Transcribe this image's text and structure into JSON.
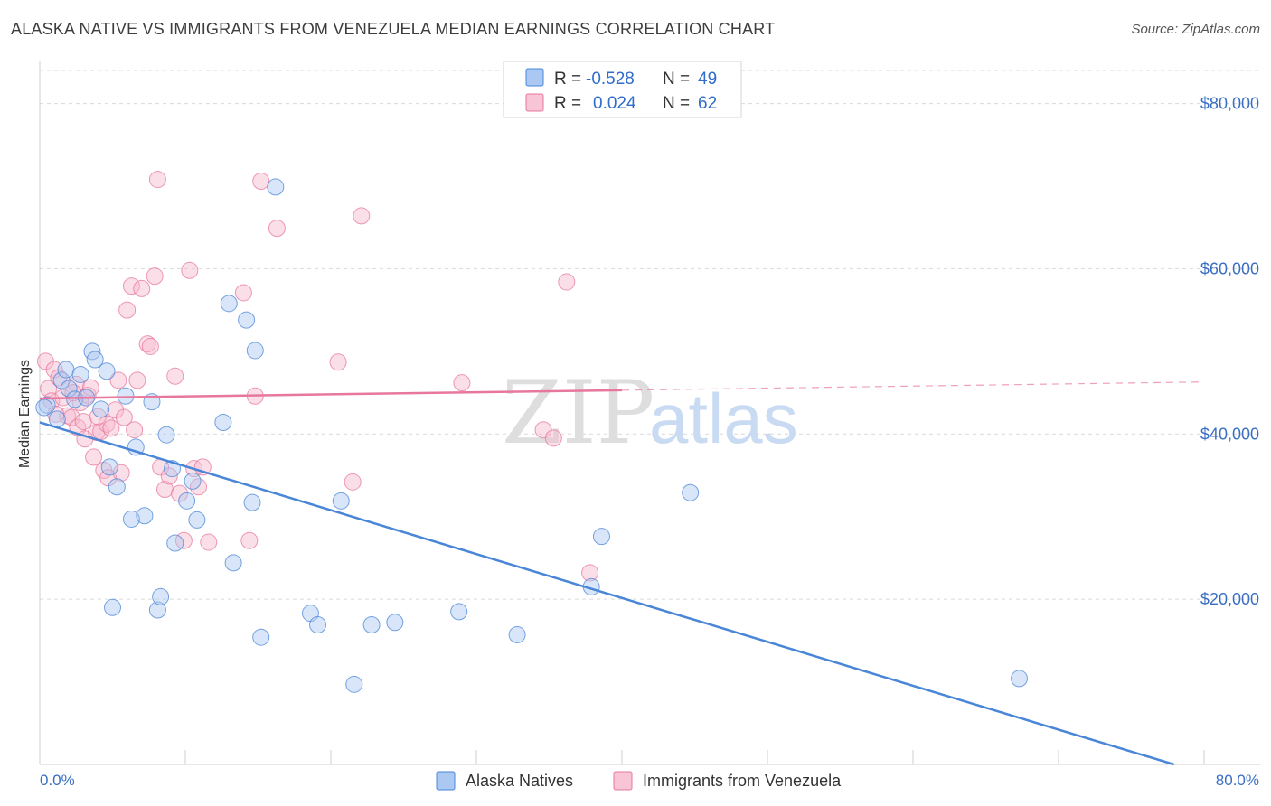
{
  "title": "ALASKA NATIVE VS IMMIGRANTS FROM VENEZUELA MEDIAN EARNINGS CORRELATION CHART",
  "source": "Source: ZipAtlas.com",
  "colors": {
    "blue": "#4a86d8",
    "blue_fill": "#aac8f2",
    "pink": "#e8779c",
    "pink_fill": "#f7b9cc",
    "axis_text": "#3a6fc4",
    "grid": "#d9d9d9"
  },
  "legend": {
    "r_label": "R =",
    "n_label": "N =",
    "rows": [
      {
        "series": "Alaska Natives",
        "r": "-0.528",
        "n": "49"
      },
      {
        "series": "Immigrants from Venezuela",
        "r": "0.024",
        "n": "62"
      }
    ]
  },
  "watermark": {
    "zip": "ZIP",
    "atlas": "atlas"
  },
  "chart_data": {
    "type": "scatter",
    "ylabel": "Median Earnings",
    "xlabel": "",
    "xlim": [
      0,
      80
    ],
    "ylim": [
      0,
      84000
    ],
    "x_tick_labels": [
      "0.0%",
      "80.0%"
    ],
    "y_ticks": [
      20000,
      40000,
      60000,
      80000
    ],
    "y_tick_labels": [
      "$20,000",
      "$40,000",
      "$60,000",
      "$80,000"
    ],
    "grid": "horizontal dashed",
    "legend_placement": "top-center and bottom",
    "series": [
      {
        "name": "Alaska Natives",
        "color": "#4a86d8",
        "trend": {
          "x0": 0,
          "y0": 41400,
          "x1": 80,
          "y1": -1100,
          "dashed_from": null
        },
        "points": [
          [
            0.5,
            43500
          ],
          [
            1.2,
            41800
          ],
          [
            1.5,
            46500
          ],
          [
            1.8,
            47800
          ],
          [
            2.0,
            45500
          ],
          [
            2.4,
            44200
          ],
          [
            2.8,
            47200
          ],
          [
            3.2,
            44400
          ],
          [
            3.6,
            50000
          ],
          [
            3.8,
            49000
          ],
          [
            4.2,
            43000
          ],
          [
            4.6,
            47600
          ],
          [
            4.8,
            36000
          ],
          [
            5.0,
            19000
          ],
          [
            5.3,
            33600
          ],
          [
            5.9,
            44600
          ],
          [
            6.3,
            29700
          ],
          [
            6.6,
            38400
          ],
          [
            7.2,
            30100
          ],
          [
            7.7,
            43900
          ],
          [
            8.1,
            18700
          ],
          [
            8.3,
            20300
          ],
          [
            8.7,
            39900
          ],
          [
            9.1,
            35800
          ],
          [
            9.3,
            26800
          ],
          [
            10.1,
            31900
          ],
          [
            10.5,
            34300
          ],
          [
            10.8,
            29600
          ],
          [
            12.6,
            41400
          ],
          [
            13.0,
            55800
          ],
          [
            13.3,
            24400
          ],
          [
            14.2,
            53800
          ],
          [
            14.6,
            31700
          ],
          [
            14.8,
            50100
          ],
          [
            15.2,
            15400
          ],
          [
            16.2,
            69900
          ],
          [
            18.6,
            18300
          ],
          [
            19.1,
            16900
          ],
          [
            20.7,
            31900
          ],
          [
            21.6,
            9700
          ],
          [
            22.8,
            16900
          ],
          [
            24.4,
            17200
          ],
          [
            28.8,
            18500
          ],
          [
            32.8,
            15700
          ],
          [
            37.9,
            21500
          ],
          [
            38.6,
            27600
          ],
          [
            44.7,
            32900
          ],
          [
            67.3,
            10400
          ],
          [
            0.3,
            43200
          ]
        ]
      },
      {
        "name": "Immigrants from Venezuela",
        "color": "#e8779c",
        "trend": {
          "x0": 0,
          "y0": 44300,
          "x1": 80,
          "y1": 46300,
          "dashed_from": 40
        },
        "points": [
          [
            0.4,
            48800
          ],
          [
            0.6,
            45500
          ],
          [
            0.8,
            44000
          ],
          [
            1.0,
            47800
          ],
          [
            1.3,
            46800
          ],
          [
            1.6,
            44400
          ],
          [
            1.9,
            42200
          ],
          [
            2.2,
            42000
          ],
          [
            2.5,
            46000
          ],
          [
            2.6,
            40800
          ],
          [
            2.8,
            43800
          ],
          [
            3.0,
            41500
          ],
          [
            3.1,
            39400
          ],
          [
            3.3,
            44700
          ],
          [
            3.5,
            45600
          ],
          [
            3.7,
            37200
          ],
          [
            3.9,
            40200
          ],
          [
            4.2,
            40300
          ],
          [
            4.4,
            35600
          ],
          [
            4.6,
            41200
          ],
          [
            4.7,
            34700
          ],
          [
            4.9,
            40700
          ],
          [
            5.2,
            42900
          ],
          [
            5.4,
            46500
          ],
          [
            5.6,
            35300
          ],
          [
            5.8,
            42000
          ],
          [
            6.0,
            55000
          ],
          [
            6.3,
            57900
          ],
          [
            6.5,
            40500
          ],
          [
            6.7,
            46500
          ],
          [
            7.0,
            57600
          ],
          [
            7.4,
            50900
          ],
          [
            7.6,
            50600
          ],
          [
            7.9,
            59100
          ],
          [
            8.1,
            70800
          ],
          [
            8.3,
            36000
          ],
          [
            8.6,
            33300
          ],
          [
            8.9,
            34900
          ],
          [
            9.3,
            47000
          ],
          [
            9.6,
            32800
          ],
          [
            9.9,
            27100
          ],
          [
            10.3,
            59800
          ],
          [
            10.6,
            35800
          ],
          [
            10.9,
            33600
          ],
          [
            11.2,
            36000
          ],
          [
            11.6,
            26900
          ],
          [
            14.0,
            57100
          ],
          [
            14.4,
            27100
          ],
          [
            14.8,
            44600
          ],
          [
            15.2,
            70600
          ],
          [
            16.3,
            64900
          ],
          [
            20.5,
            48700
          ],
          [
            21.5,
            34200
          ],
          [
            22.1,
            66400
          ],
          [
            29.0,
            46200
          ],
          [
            34.6,
            40500
          ],
          [
            35.3,
            39500
          ],
          [
            36.2,
            58400
          ],
          [
            37.8,
            23200
          ],
          [
            1.1,
            42400
          ],
          [
            2.3,
            45000
          ],
          [
            4.0,
            42100
          ]
        ]
      }
    ]
  },
  "bottom_legend": [
    "Alaska Natives",
    "Immigrants from Venezuela"
  ]
}
